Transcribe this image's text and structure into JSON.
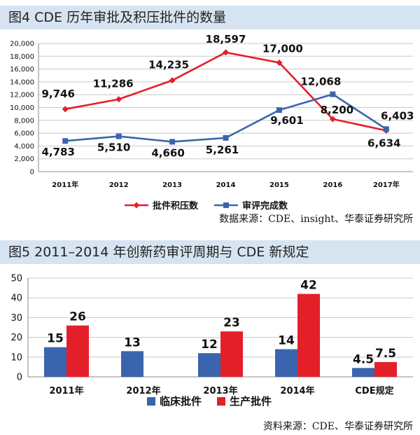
{
  "chart_data": [
    {
      "type": "line",
      "title": "图4 CDE 历年审批及积压批件的数量",
      "categories": [
        "2011年",
        "2012",
        "2013",
        "2014",
        "2015",
        "2016",
        "2017年"
      ],
      "ylim": [
        0,
        20000
      ],
      "yticks": [
        "0",
        "2,000",
        "4,000",
        "6,000",
        "8,000",
        "10,000",
        "12,000",
        "14,000",
        "16,000",
        "18,000",
        "20,000"
      ],
      "grid": true,
      "legend_position": "bottom",
      "series": [
        {
          "name": "批件积压数",
          "color": "#e3202a",
          "marker": "diamond",
          "values": [
            9746,
            11286,
            14235,
            18597,
            17000,
            8200,
            6403
          ],
          "labels": [
            "9,746",
            "11,286",
            "14,235",
            "18,597",
            "17,000",
            "8,200",
            "6,403"
          ]
        },
        {
          "name": "审评完成数",
          "color": "#3a64ad",
          "marker": "square",
          "values": [
            4783,
            5510,
            4660,
            5261,
            9601,
            12068,
            6634
          ],
          "labels": [
            "4,783",
            "5,510",
            "4,660",
            "5,261",
            "9,601",
            "12,068",
            "6,634"
          ]
        }
      ],
      "source": "数据来源：CDE、insight、华泰证券研究所"
    },
    {
      "type": "bar",
      "title": "图5  2011–2014 年创新药审评周期与 CDE 新规定",
      "categories": [
        "2011年",
        "2012年",
        "2013年",
        "2014年",
        "CDE规定"
      ],
      "ylim": [
        0,
        50
      ],
      "yticks": [
        "0",
        "10",
        "20",
        "30",
        "40",
        "50"
      ],
      "grid": true,
      "legend_position": "bottom",
      "series": [
        {
          "name": "临床批件",
          "color": "#3a64ad",
          "values": [
            15,
            13,
            12,
            14,
            4.5
          ],
          "labels": [
            "15",
            "13",
            "12",
            "14",
            "4.5"
          ]
        },
        {
          "name": "生产批件",
          "color": "#e3202a",
          "values": [
            26,
            null,
            23,
            42,
            7.5
          ],
          "labels": [
            "26",
            "",
            "23",
            "42",
            "7.5"
          ]
        }
      ],
      "source": "资料来源：CDE、华泰证券研究所"
    }
  ]
}
